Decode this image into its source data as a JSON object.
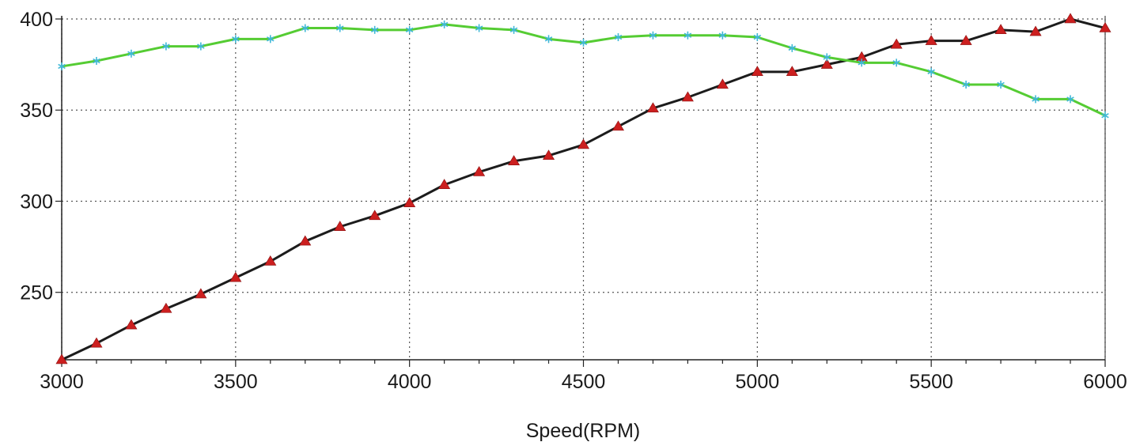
{
  "chart_data": {
    "type": "line",
    "title": "",
    "xlabel": "Speed(RPM)",
    "ylabel": "",
    "xlim": [
      3000,
      6000
    ],
    "ylim": [
      213,
      400
    ],
    "xticks": [
      3000,
      3500,
      4000,
      4500,
      5000,
      5500,
      6000
    ],
    "yticks": [
      250,
      300,
      350,
      400
    ],
    "x_minor_step": 100,
    "grid": true,
    "legend": "none",
    "x": [
      3000,
      3100,
      3200,
      3300,
      3400,
      3500,
      3600,
      3700,
      3800,
      3900,
      4000,
      4100,
      4200,
      4300,
      4400,
      4500,
      4600,
      4700,
      4800,
      4900,
      5000,
      5100,
      5200,
      5300,
      5400,
      5500,
      5600,
      5700,
      5800,
      5900,
      6000
    ],
    "series": [
      {
        "color": "#1c1c1c",
        "marker": "triangle",
        "marker_color": "#cc1f1f",
        "values": [
          213,
          222,
          232,
          241,
          249,
          258,
          267,
          278,
          286,
          292,
          299,
          309,
          316,
          322,
          325,
          331,
          341,
          351,
          357,
          364,
          371,
          371,
          375,
          379,
          386,
          388,
          388,
          394,
          393,
          400,
          395
        ]
      },
      {
        "color": "#55cc33",
        "marker": "star",
        "marker_color": "#3fb8d6",
        "values": [
          374,
          377,
          381,
          385,
          385,
          389,
          389,
          395,
          395,
          394,
          394,
          397,
          395,
          394,
          389,
          387,
          390,
          391,
          391,
          391,
          390,
          384,
          379,
          376,
          376,
          371,
          364,
          364,
          356,
          356,
          347
        ]
      }
    ]
  }
}
